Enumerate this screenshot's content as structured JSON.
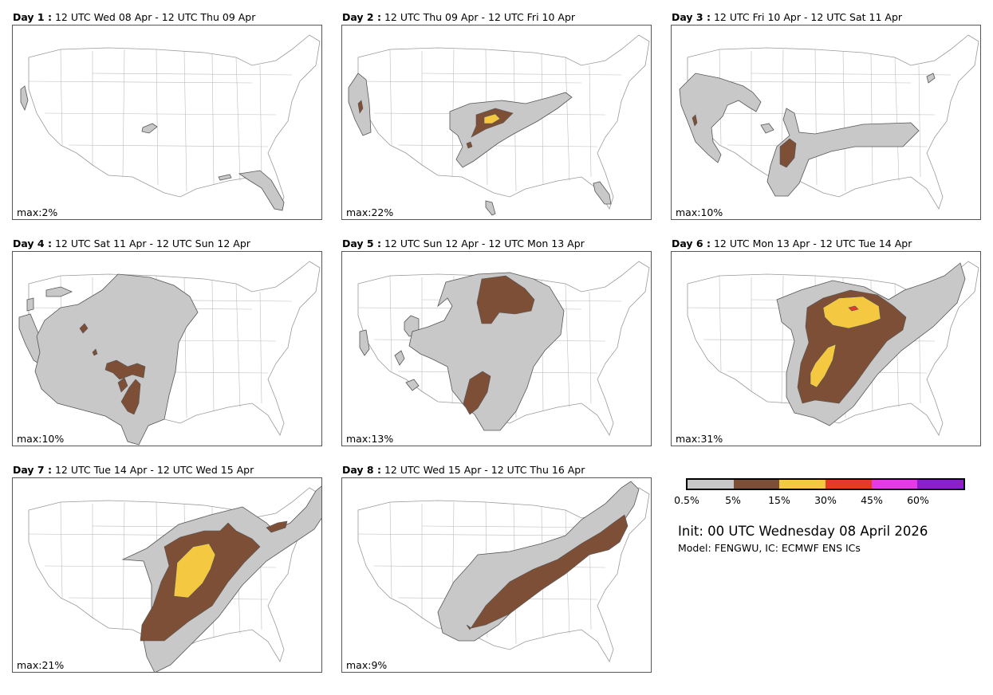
{
  "panels": [
    {
      "day": "Day 1 :",
      "period": "12 UTC Wed 08 Apr - 12 UTC Thu 09 Apr",
      "max": "max:2%"
    },
    {
      "day": "Day 2 :",
      "period": "12 UTC Thu 09 Apr - 12 UTC Fri 10 Apr",
      "max": "max:22%"
    },
    {
      "day": "Day 3 :",
      "period": "12 UTC Fri 10 Apr - 12 UTC Sat 11 Apr",
      "max": "max:10%"
    },
    {
      "day": "Day 4 :",
      "period": "12 UTC Sat 11 Apr - 12 UTC Sun 12 Apr",
      "max": "max:10%"
    },
    {
      "day": "Day 5 :",
      "period": "12 UTC Sun 12 Apr - 12 UTC Mon 13 Apr",
      "max": "max:13%"
    },
    {
      "day": "Day 6 :",
      "period": "12 UTC Mon 13 Apr - 12 UTC Tue 14 Apr",
      "max": "max:31%"
    },
    {
      "day": "Day 7 :",
      "period": "12 UTC Tue 14 Apr - 12 UTC Wed 15 Apr",
      "max": "max:21%"
    },
    {
      "day": "Day 8 :",
      "period": "12 UTC Wed 15 Apr - 12 UTC Thu 16 Apr",
      "max": "max:9%"
    }
  ],
  "legend": {
    "colors": [
      "#c8c8c8",
      "#7d4f37",
      "#f5c842",
      "#e83828",
      "#e43ce4",
      "#8c1ecc"
    ],
    "ticks": [
      "0.5%",
      "5%",
      "15%",
      "30%",
      "45%",
      "60%"
    ]
  },
  "init": "Init: 00 UTC Wednesday 08 April 2026",
  "model": "Model: FENGWU, IC: ECMWF ENS ICs"
}
